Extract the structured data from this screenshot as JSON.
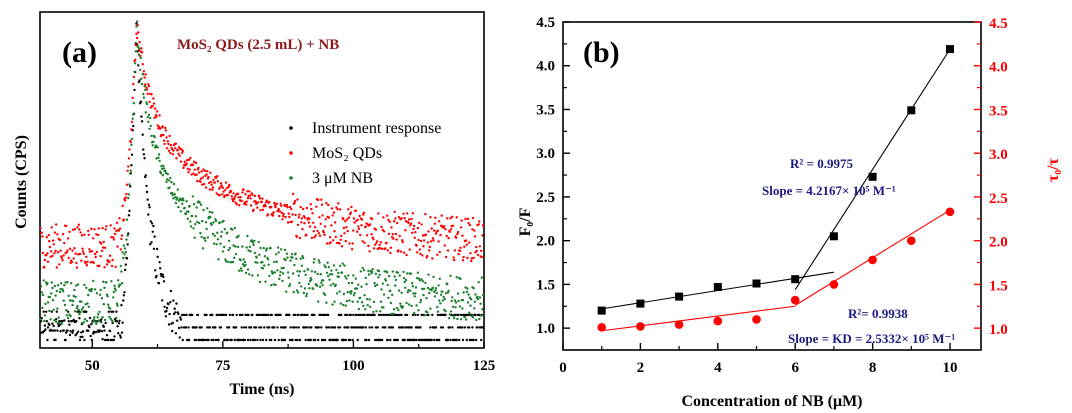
{
  "colors": {
    "black": "#000000",
    "red": "#ff0000",
    "green": "#1a7f2a",
    "navy": "#1a1a80",
    "title": "#8b1a1a"
  },
  "chart_data": [
    {
      "type": "scatter",
      "panel_label": "(a)",
      "title": "MoS₂ QDs (2.5 mL) + NB",
      "xlabel": "Time (ns)",
      "ylabel": "Counts (CPS)",
      "xlim": [
        40,
        125
      ],
      "xticks": [
        "50",
        "75",
        "100",
        "125"
      ],
      "legend_position": "right",
      "series": [
        {
          "name": "Instrument response",
          "color": "#000000",
          "rise": 54.3,
          "peak_x": 58.5,
          "peak": 100,
          "base": 0,
          "tau": 2.3,
          "tau2": 6,
          "w2": 0.15
        },
        {
          "name": "MoS₂ QDs",
          "color": "#ff0000",
          "rise": 54.3,
          "peak_x": 58.5,
          "peak": 100,
          "base": 30,
          "tau": 3,
          "tau2": 22,
          "w2": 0.55
        },
        {
          "name": "3 μM NB",
          "color": "#1a7f2a",
          "rise": 54.3,
          "peak_x": 58.5,
          "peak": 100,
          "base": 12,
          "tau": 2.5,
          "tau2": 18,
          "w2": 0.55
        }
      ]
    },
    {
      "type": "scatter",
      "panel_label": "(b)",
      "xlabel": "Concentration of NB (μM)",
      "ylabel_left": "F₀/F",
      "ylabel_right": "τ₀/τ",
      "xlim": [
        0,
        10.8
      ],
      "ylim": [
        0.75,
        4.5
      ],
      "xticks": [
        "0",
        "2",
        "4",
        "6",
        "8",
        "10"
      ],
      "yticks": [
        "1.0",
        "1.5",
        "2.0",
        "2.5",
        "3.0",
        "3.5",
        "4.0",
        "4.5"
      ],
      "series": [
        {
          "name": "F0/F",
          "color": "#000000",
          "marker": "square",
          "x": [
            1,
            2,
            3,
            4,
            5,
            6,
            7,
            8,
            9,
            10
          ],
          "y": [
            1.2,
            1.28,
            1.36,
            1.47,
            1.51,
            1.56,
            2.05,
            2.73,
            3.49,
            4.19
          ]
        },
        {
          "name": "τ0/τ",
          "color": "#ff0000",
          "marker": "circle",
          "x": [
            1,
            2,
            3,
            4,
            5,
            6,
            7,
            8,
            9,
            10
          ],
          "y": [
            1.01,
            1.02,
            1.04,
            1.08,
            1.1,
            1.32,
            1.5,
            1.78,
            2.0,
            2.33
          ]
        }
      ],
      "fits": [
        {
          "color": "#000000",
          "x": [
            1,
            7
          ],
          "y": [
            1.22,
            1.64
          ]
        },
        {
          "color": "#000000",
          "x": [
            6,
            10
          ],
          "y": [
            1.44,
            4.19
          ]
        },
        {
          "color": "#ff0000",
          "x": [
            1,
            6
          ],
          "y": [
            0.97,
            1.25
          ]
        },
        {
          "color": "#ff0000",
          "x": [
            6,
            10
          ],
          "y": [
            1.26,
            2.35
          ]
        }
      ],
      "annotations": [
        {
          "text": "R² = 0.9975",
          "color": "#1a1a80"
        },
        {
          "text": "Slope = 4.2167× 10⁵ M⁻¹",
          "color": "#1a1a80"
        },
        {
          "text": "R²= 0.9938",
          "color": "#1a1a80"
        },
        {
          "text": "Slope = KD = 2.5332× 10⁵ M⁻¹",
          "color": "#1a1a80"
        }
      ]
    }
  ]
}
